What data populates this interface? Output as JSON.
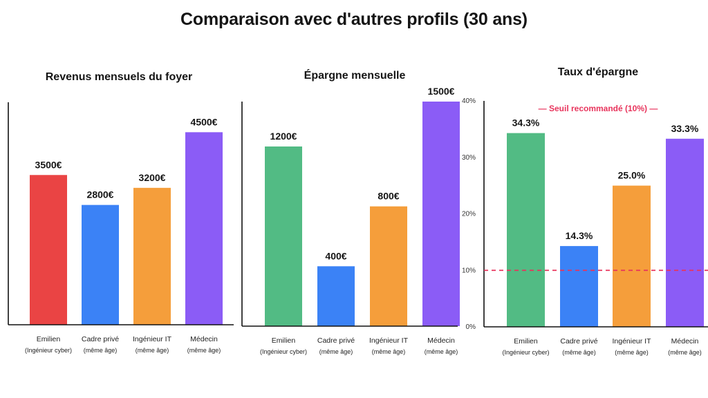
{
  "title": "Comparaison avec d'autres profils (30 ans)",
  "colors": {
    "red": "#ea4444",
    "blue": "#3b82f6",
    "orange": "#f59e3b",
    "purple": "#8b5cf6",
    "green": "#52bb84",
    "threshold": "#e8345c"
  },
  "chart_data": [
    {
      "type": "bar",
      "title": "Revenus mensuels du foyer",
      "categories": [
        {
          "name": "Emilien",
          "sub": "(Ingénieur cyber)"
        },
        {
          "name": "Cadre privé",
          "sub": "(même âge)"
        },
        {
          "name": "Ingénieur IT",
          "sub": "(même âge)"
        },
        {
          "name": "Médecin",
          "sub": "(même âge)"
        }
      ],
      "values": [
        3500,
        2800,
        3200,
        4500
      ],
      "value_labels": [
        "3500€",
        "2800€",
        "3200€",
        "4500€"
      ],
      "bar_colors": [
        "red",
        "blue",
        "orange",
        "purple"
      ],
      "ylim": [
        0,
        5200
      ],
      "grid": false
    },
    {
      "type": "bar",
      "title": "Épargne mensuelle",
      "categories": [
        {
          "name": "Emilien",
          "sub": "(Ingénieur cyber)"
        },
        {
          "name": "Cadre privé",
          "sub": "(même âge)"
        },
        {
          "name": "Ingénieur IT",
          "sub": "(même âge)"
        },
        {
          "name": "Médecin",
          "sub": "(même âge)"
        }
      ],
      "values": [
        1200,
        400,
        800,
        1500
      ],
      "value_labels": [
        "1200€",
        "400€",
        "800€",
        "1500€"
      ],
      "bar_colors": [
        "green",
        "blue",
        "orange",
        "purple"
      ],
      "ylim": [
        0,
        1500
      ],
      "grid": false
    },
    {
      "type": "bar",
      "title": "Taux d'épargne",
      "categories": [
        {
          "name": "Emilien",
          "sub": "(Ingénieur cyber)"
        },
        {
          "name": "Cadre privé",
          "sub": "(même âge)"
        },
        {
          "name": "Ingénieur IT",
          "sub": "(même âge)"
        },
        {
          "name": "Médecin",
          "sub": "(même âge)"
        }
      ],
      "values": [
        34.3,
        14.3,
        25.0,
        33.3
      ],
      "value_labels": [
        "34.3%",
        "14.3%",
        "25.0%",
        "33.3%"
      ],
      "bar_colors": [
        "green",
        "blue",
        "orange",
        "purple"
      ],
      "ylim": [
        0,
        40
      ],
      "yticks": [
        0,
        10,
        20,
        30,
        40
      ],
      "ytick_labels": [
        "0%",
        "10%",
        "20%",
        "30%",
        "40%"
      ],
      "threshold": {
        "value": 10,
        "label": "— Seuil recommandé (10%) —"
      },
      "grid": false
    }
  ]
}
